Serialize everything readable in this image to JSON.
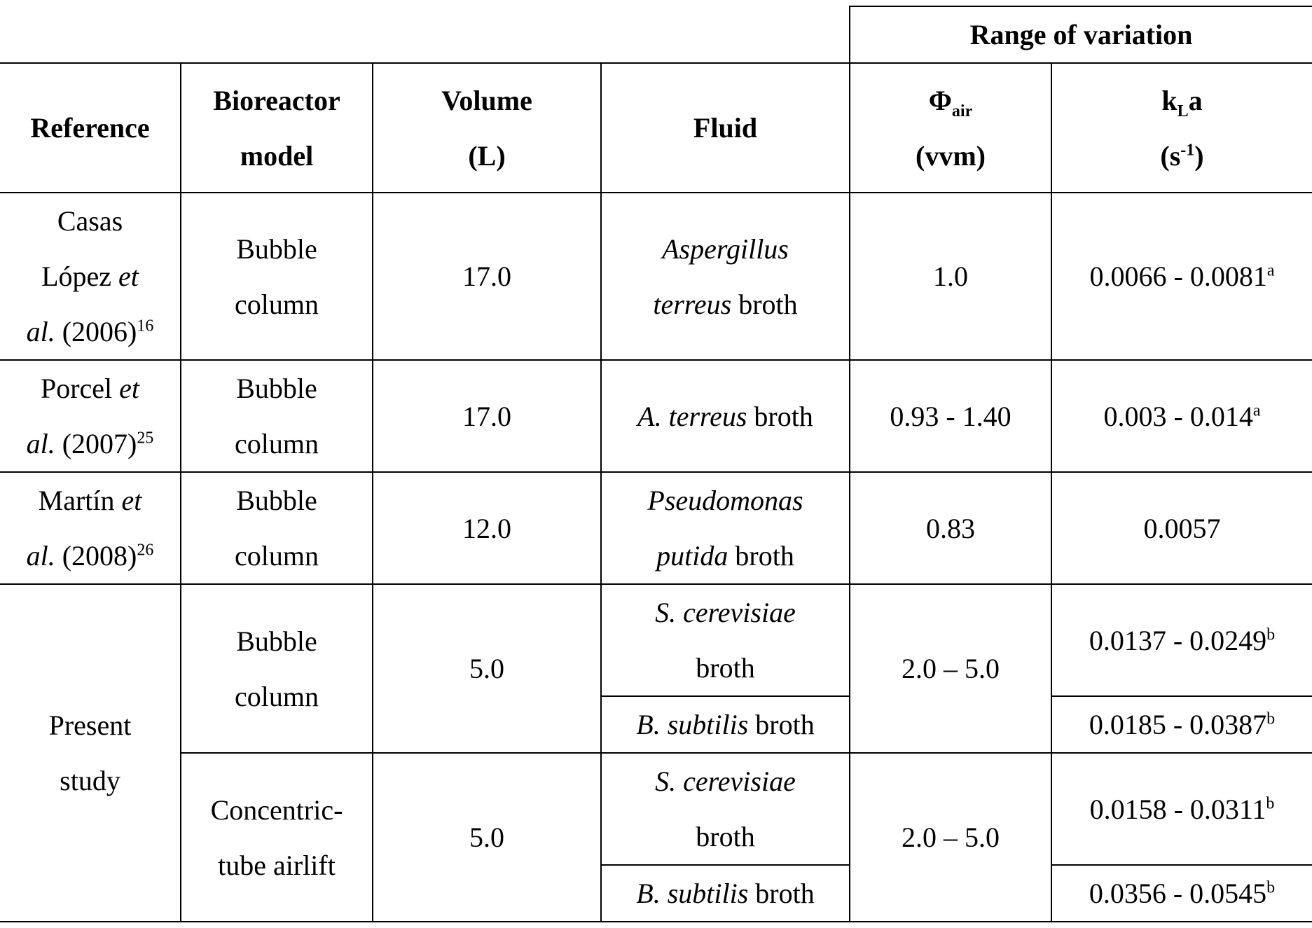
{
  "table": {
    "group_header": "Range of variation",
    "headers": {
      "reference": "Reference",
      "bioreactor": [
        "Bioreactor",
        "model"
      ],
      "volume": [
        "Volume",
        "(L)"
      ],
      "fluid": "Fluid",
      "phi": {
        "symbol": "Φ",
        "sub": "air",
        "unit": "(vvm)"
      },
      "kla": {
        "k": "k",
        "sub": "L",
        "a": "a",
        "unit_open": "(s",
        "unit_sup": "-1",
        "unit_close": ")"
      }
    },
    "rows": [
      {
        "reference": {
          "line1": "Casas",
          "line2_plain": "López ",
          "line2_italic": "et",
          "line3_italic": "al.",
          "line3_plain": " (2006)",
          "sup": "16"
        },
        "bioreactor": [
          "Bubble",
          "column"
        ],
        "volume": "17.0",
        "fluid": {
          "line1_italic": "Aspergillus",
          "line2_italic": "terreus",
          "line2_plain": " broth"
        },
        "phi": "1.0",
        "kla": {
          "value": "0.0066 - 0.0081",
          "sup": "a"
        }
      },
      {
        "reference": {
          "line1_plain": "Porcel ",
          "line1_italic": "et",
          "line2_italic": "al.",
          "line2_plain": " (2007)",
          "sup": "25"
        },
        "bioreactor": [
          "Bubble",
          "column"
        ],
        "volume": "17.0",
        "fluid": {
          "italic": "A. terreus",
          "plain": " broth"
        },
        "phi": "0.93 - 1.40",
        "kla": {
          "value": "0.003 - 0.014",
          "sup": "a"
        }
      },
      {
        "reference": {
          "line1_plain": "Martín ",
          "line1_italic": "et",
          "line2_italic": "al.",
          "line2_plain": " (2008)",
          "sup": "26"
        },
        "bioreactor": [
          "Bubble",
          "column"
        ],
        "volume": "12.0",
        "fluid": {
          "line1_italic": "Pseudomonas",
          "line2_italic": "putida",
          "line2_plain": " broth"
        },
        "phi": "0.83",
        "kla": {
          "value": "0.0057"
        }
      }
    ],
    "present": {
      "reference": [
        "Present",
        "study"
      ],
      "groups": [
        {
          "bioreactor": [
            "Bubble",
            "column"
          ],
          "volume": "5.0",
          "phi": "2.0 – 5.0",
          "fluids": [
            {
              "line1_italic": "S. cerevisiae",
              "line2_plain": "broth",
              "kla": "0.0137 - 0.0249",
              "sup": "b"
            },
            {
              "italic": "B. subtilis",
              "plain": " broth",
              "kla": "0.0185 - 0.0387",
              "sup": "b"
            }
          ]
        },
        {
          "bioreactor": [
            "Concentric-",
            "tube airlift"
          ],
          "volume": "5.0",
          "phi": "2.0 – 5.0",
          "fluids": [
            {
              "line1_italic": "S. cerevisiae",
              "line2_plain": "broth",
              "kla": "0.0158 - 0.0311",
              "sup": "b"
            },
            {
              "italic": "B. subtilis",
              "plain": " broth",
              "kla": "0.0356 - 0.0545",
              "sup": "b"
            }
          ]
        }
      ]
    }
  }
}
